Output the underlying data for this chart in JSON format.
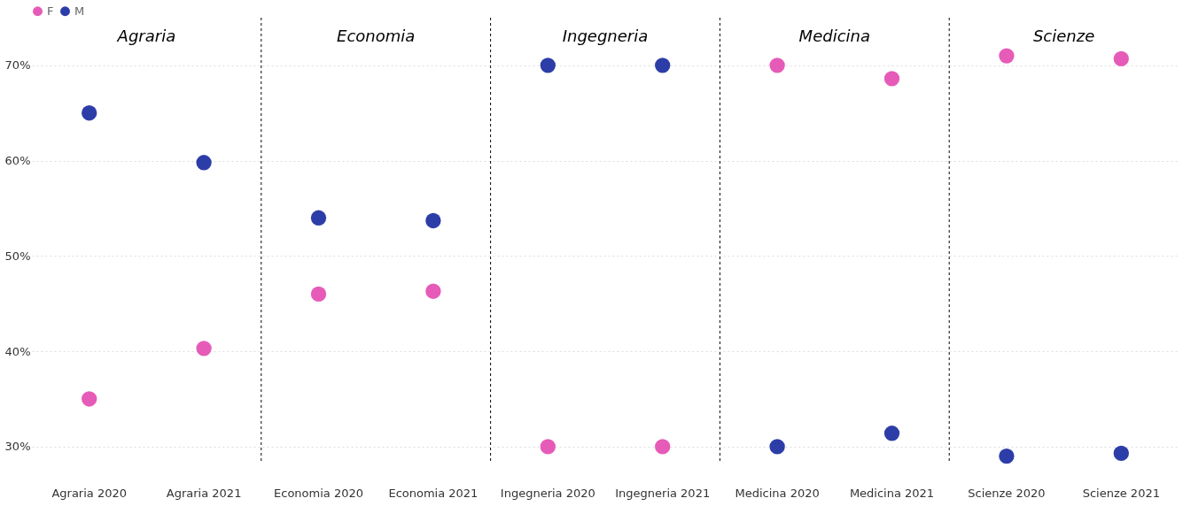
{
  "chart_data": {
    "type": "scatter",
    "categories": [
      "Agraria 2020",
      "Agraria 2021",
      "Economia 2020",
      "Economia 2021",
      "Ingegneria 2020",
      "Ingegneria 2021",
      "Medicina 2020",
      "Medicina 2021",
      "Scienze 2020",
      "Scienze 2021"
    ],
    "series": [
      {
        "name": "F",
        "color": "#e65bb8",
        "values": [
          35,
          40.3,
          46,
          46.3,
          30,
          30,
          70,
          68.6,
          71,
          70.7
        ]
      },
      {
        "name": "M",
        "color": "#2d3da8",
        "values": [
          65,
          59.8,
          54,
          53.7,
          70,
          70,
          30,
          31.4,
          29,
          29.3
        ]
      }
    ],
    "annotations": [
      "Agraria",
      "Economia",
      "Ingegneria",
      "Medicina",
      "Scienze"
    ],
    "ylim": [
      28.5,
      75
    ],
    "yticks": [
      {
        "value": 30,
        "label": "30%"
      },
      {
        "value": 40,
        "label": "40%"
      },
      {
        "value": 50,
        "label": "50%"
      },
      {
        "value": 60,
        "label": "60%"
      },
      {
        "value": 70,
        "label": "70%"
      }
    ],
    "grid": "y",
    "legend": "top left",
    "marker": "circle"
  }
}
